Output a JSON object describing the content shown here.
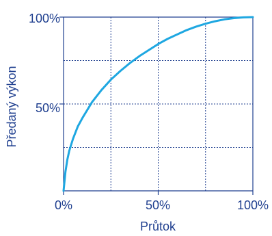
{
  "chart_data": {
    "type": "line",
    "xlabel": "Průtok",
    "ylabel": "Předaný výkon",
    "x_ticks": [
      "0%",
      "50%",
      "100%"
    ],
    "y_ticks": [
      "50%",
      "100%"
    ],
    "xlim": [
      0,
      100
    ],
    "ylim": [
      0,
      100
    ],
    "grid": true,
    "grid_x": [
      25,
      50,
      75
    ],
    "grid_y": [
      25,
      50,
      75
    ],
    "series": [
      {
        "color": "#1ea7e1",
        "x": [
          0,
          1,
          2,
          3,
          5,
          7.5,
          10,
          15,
          20,
          25,
          30,
          35,
          40,
          45,
          50,
          55,
          60,
          65,
          70,
          75,
          80,
          85,
          90,
          95,
          100
        ],
        "y": [
          0,
          11,
          18,
          23,
          30,
          37,
          42,
          51,
          58,
          64,
          69,
          73.5,
          77.5,
          81,
          84.5,
          87.5,
          90,
          92.5,
          94.5,
          96.2,
          97.6,
          98.7,
          99.4,
          99.85,
          100
        ]
      }
    ],
    "colors": {
      "axis": "#1f3f8f",
      "grid": "#1f3f8f",
      "text": "#1f3f8f"
    }
  }
}
